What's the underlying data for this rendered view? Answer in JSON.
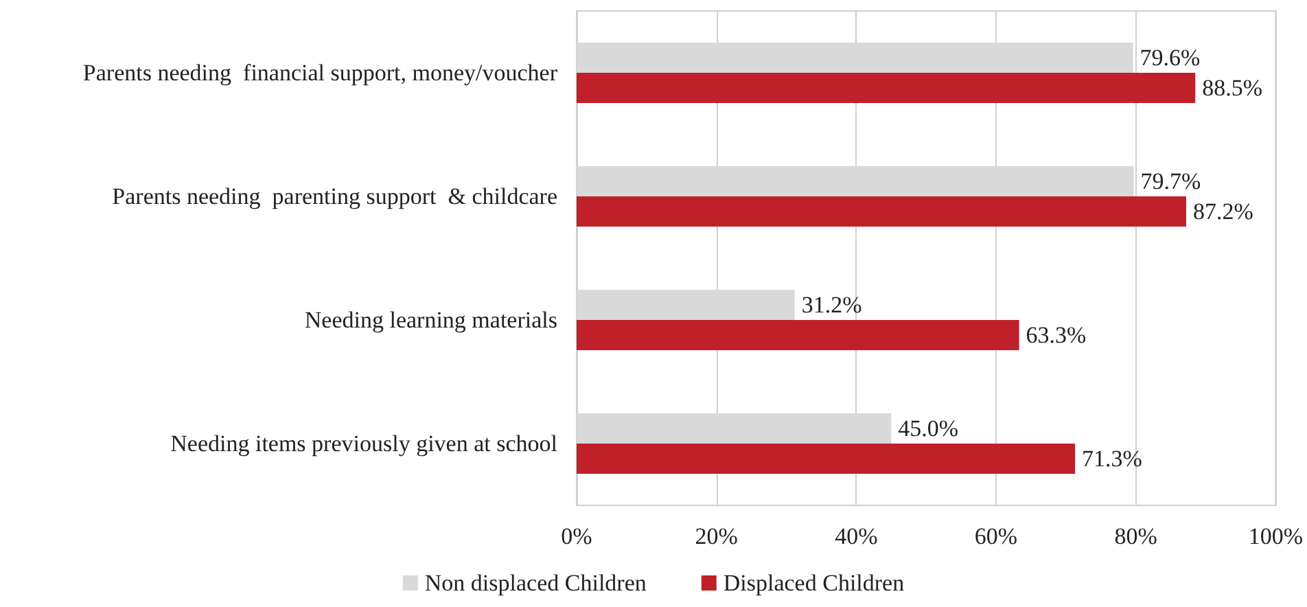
{
  "chart_data": {
    "type": "bar",
    "orientation": "horizontal",
    "categories": [
      "Parents needing  financial support, money/voucher",
      "Parents needing  parenting support  & childcare",
      "Needing learning materials",
      "Needing items previously given at school"
    ],
    "series": [
      {
        "name": "Non displaced Children",
        "color": "#d9d9d9",
        "values": [
          79.6,
          79.7,
          31.2,
          45.0
        ],
        "value_labels": [
          "79.6%",
          "79.7%",
          "31.2%",
          "45.0%"
        ]
      },
      {
        "name": "Displaced Children",
        "color": "#c0202a",
        "values": [
          88.5,
          87.2,
          63.3,
          71.3
        ],
        "value_labels": [
          "88.5%",
          "87.2%",
          "63.3%",
          "71.3%"
        ]
      }
    ],
    "xlim": [
      0,
      100
    ],
    "xticks": [
      {
        "value": 0,
        "label": "0%"
      },
      {
        "value": 20,
        "label": "20%"
      },
      {
        "value": 40,
        "label": "40%"
      },
      {
        "value": 60,
        "label": "60%"
      },
      {
        "value": 80,
        "label": "80%"
      },
      {
        "value": 100,
        "label": "100%"
      }
    ],
    "grid": "x",
    "legend": "bottom"
  }
}
